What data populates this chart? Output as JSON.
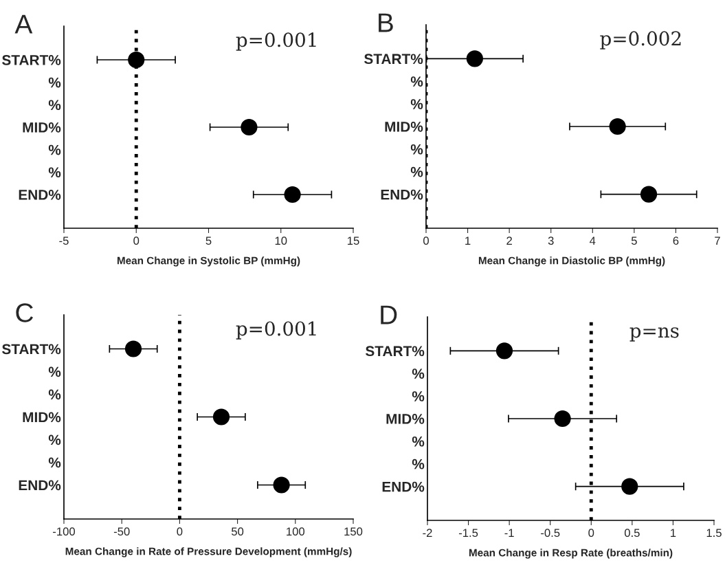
{
  "chart_data": [
    {
      "type": "scatter",
      "title": "A",
      "orientation": "horizontal",
      "categories": [
        "START%",
        "%",
        "%",
        "MID%",
        "%",
        "%",
        "END%"
      ],
      "xlabel": "Mean Change in Systolic BP (mmHg)",
      "xlim": [
        -5,
        15
      ],
      "xticks": [
        -5,
        0,
        5,
        10,
        15
      ],
      "annotations": [
        "p=0.001"
      ],
      "marker": "circle",
      "grid": false,
      "legend": false,
      "series": [
        {
          "color": "#000000",
          "values": [
            0,
            null,
            null,
            7.8,
            null,
            null,
            10.8
          ],
          "errors": [
            2.7,
            null,
            null,
            2.7,
            null,
            null,
            2.7
          ]
        }
      ],
      "ref_lines": [
        {
          "axis": "x",
          "value": 0,
          "color": "#000000",
          "line_style": "dotted"
        }
      ]
    },
    {
      "type": "scatter",
      "title": "B",
      "orientation": "horizontal",
      "categories": [
        "START%",
        "%",
        "%",
        "MID%",
        "%",
        "%",
        "END%"
      ],
      "xlabel": "Mean Change in Diastolic BP (mmHg)",
      "xlim": [
        0,
        7
      ],
      "xticks": [
        0,
        1,
        2,
        3,
        4,
        5,
        6,
        7
      ],
      "annotations": [
        "p=0.002"
      ],
      "marker": "circle",
      "grid": false,
      "legend": false,
      "series": [
        {
          "color": "#000000",
          "values": [
            1.17,
            null,
            null,
            4.6,
            null,
            null,
            5.35
          ],
          "errors": [
            1.16,
            null,
            null,
            1.15,
            null,
            null,
            1.15
          ]
        }
      ],
      "ref_lines": [
        {
          "axis": "x",
          "value": 0,
          "color": "#000000",
          "line_style": "dotted"
        }
      ]
    },
    {
      "type": "scatter",
      "title": "C",
      "orientation": "horizontal",
      "categories": [
        "START%",
        "%",
        "%",
        "MID%",
        "%",
        "%",
        "END%"
      ],
      "xlabel": "Mean Change in Rate of Pressure Development (mmHg/s)",
      "xlim": [
        -100,
        150
      ],
      "xticks": [
        -100,
        -50,
        0,
        50,
        100,
        150
      ],
      "annotations": [
        "p=0.001"
      ],
      "marker": "circle",
      "grid": false,
      "legend": false,
      "series": [
        {
          "color": "#000000",
          "values": [
            -40,
            null,
            null,
            36,
            null,
            null,
            88
          ],
          "errors": [
            20.6,
            null,
            null,
            20.7,
            null,
            null,
            20.6
          ]
        }
      ],
      "ref_lines": [
        {
          "axis": "x",
          "value": 0,
          "color": "#000000",
          "line_style": "dotted"
        }
      ]
    },
    {
      "type": "scatter",
      "title": "D",
      "orientation": "horizontal",
      "categories": [
        "START%",
        "%",
        "%",
        "MID%",
        "%",
        "%",
        "END%"
      ],
      "xlabel": "Mean Change in Resp Rate (breaths/min)",
      "xlim": [
        -2,
        1.5
      ],
      "xticks": [
        -2,
        -1.5,
        -1,
        -0.5,
        0,
        0.5,
        1,
        1.5
      ],
      "annotations": [
        "p=ns"
      ],
      "marker": "circle",
      "grid": false,
      "legend": false,
      "series": [
        {
          "color": "#000000",
          "values": [
            -1.06,
            null,
            null,
            -0.35,
            null,
            null,
            0.47
          ],
          "errors": [
            0.66,
            null,
            null,
            0.66,
            null,
            null,
            0.66
          ]
        }
      ],
      "ref_lines": [
        {
          "axis": "x",
          "value": 0,
          "color": "#000000",
          "line_style": "dotted"
        }
      ]
    }
  ]
}
